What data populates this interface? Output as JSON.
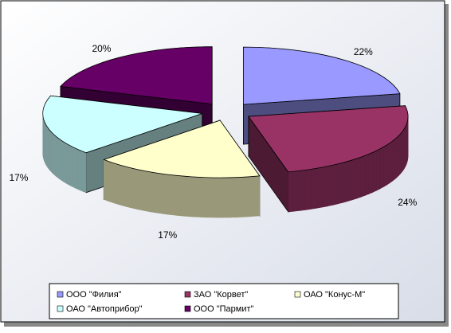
{
  "chart_data": {
    "type": "pie3d",
    "categories": [
      "ООО \"Филия\"",
      "ЗАО \"Корвет\"",
      "ОАО \"Конус-М\"",
      "ОАО \"Автоприбор\"",
      "ООО \"Пармит\""
    ],
    "values": [
      22,
      24,
      17,
      17,
      20
    ],
    "value_labels": [
      "22%",
      "24%",
      "17%",
      "17%",
      "20%"
    ],
    "colors": [
      "#9999ff",
      "#993366",
      "#ffffcc",
      "#ccffff",
      "#660066"
    ],
    "legend": "bottom"
  }
}
